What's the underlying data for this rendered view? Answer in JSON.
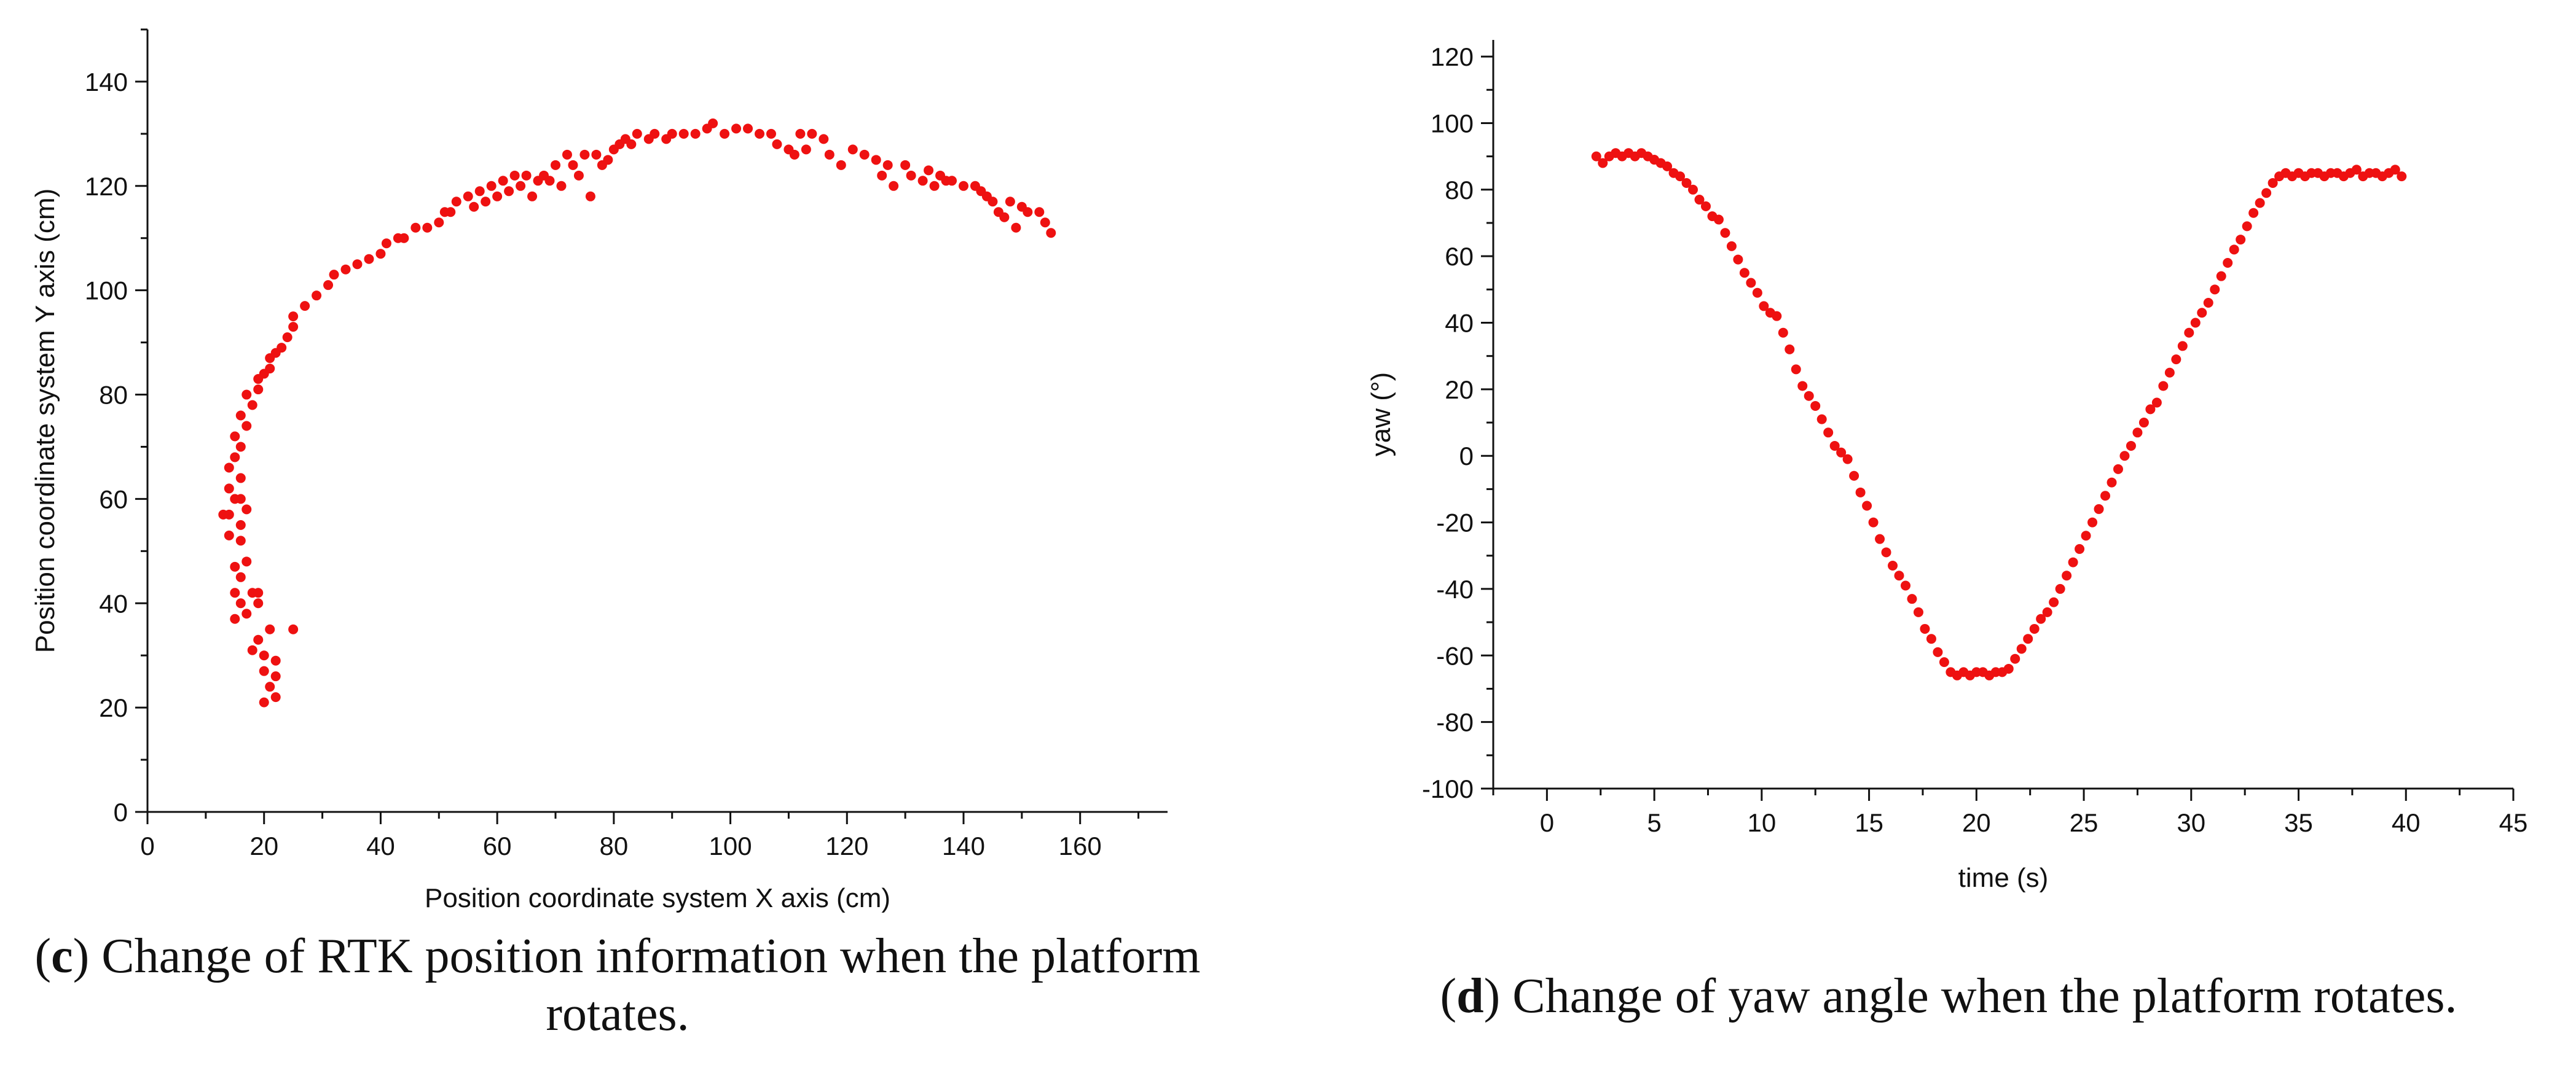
{
  "figures": {
    "c": {
      "caption_letter": "c",
      "caption_text": "Change of RTK position information when the platform rotates."
    },
    "d": {
      "caption_letter": "d",
      "caption_text": "Change of yaw angle when the platform rotates."
    }
  },
  "colors": {
    "points": "#ee1111",
    "axis": "#111111"
  },
  "chart_data": [
    {
      "id": "c",
      "type": "scatter",
      "title": "",
      "xlabel": "Position coordinate system X axis (cm)",
      "ylabel": "Position coordinate system Y axis (cm)",
      "xlim": [
        0,
        175
      ],
      "ylim": [
        0,
        150
      ],
      "xticks": [
        0,
        20,
        40,
        60,
        80,
        100,
        120,
        140,
        160
      ],
      "yticks": [
        0,
        20,
        40,
        60,
        80,
        100,
        120,
        140
      ],
      "series": [
        {
          "name": "RTK position",
          "points": [
            [
              20,
              21
            ],
            [
              22,
              22
            ],
            [
              21,
              24
            ],
            [
              20,
              27
            ],
            [
              22,
              26
            ],
            [
              22,
              29
            ],
            [
              20,
              30
            ],
            [
              18,
              31
            ],
            [
              19,
              33
            ],
            [
              25,
              35
            ],
            [
              21,
              35
            ],
            [
              15,
              37
            ],
            [
              17,
              38
            ],
            [
              19,
              40
            ],
            [
              16,
              40
            ],
            [
              18,
              42
            ],
            [
              15,
              42
            ],
            [
              19,
              42
            ],
            [
              16,
              45
            ],
            [
              15,
              47
            ],
            [
              17,
              48
            ],
            [
              16,
              52
            ],
            [
              14,
              53
            ],
            [
              16,
              55
            ],
            [
              14,
              57
            ],
            [
              13,
              57
            ],
            [
              17,
              58
            ],
            [
              15,
              60
            ],
            [
              16,
              60
            ],
            [
              14,
              62
            ],
            [
              16,
              64
            ],
            [
              14,
              66
            ],
            [
              15,
              68
            ],
            [
              16,
              70
            ],
            [
              15,
              72
            ],
            [
              17,
              74
            ],
            [
              16,
              76
            ],
            [
              18,
              78
            ],
            [
              17,
              80
            ],
            [
              19,
              81
            ],
            [
              19,
              83
            ],
            [
              20,
              84
            ],
            [
              21,
              85
            ],
            [
              21,
              87
            ],
            [
              22,
              88
            ],
            [
              23,
              89
            ],
            [
              24,
              91
            ],
            [
              25,
              93
            ],
            [
              25,
              95
            ],
            [
              27,
              97
            ],
            [
              29,
              99
            ],
            [
              31,
              101
            ],
            [
              32,
              103
            ],
            [
              34,
              104
            ],
            [
              36,
              105
            ],
            [
              38,
              106
            ],
            [
              40,
              107
            ],
            [
              41,
              109
            ],
            [
              43,
              110
            ],
            [
              44,
              110
            ],
            [
              46,
              112
            ],
            [
              48,
              112
            ],
            [
              50,
              113
            ],
            [
              51,
              115
            ],
            [
              52,
              115
            ],
            [
              53,
              117
            ],
            [
              55,
              118
            ],
            [
              56,
              116
            ],
            [
              57,
              119
            ],
            [
              58,
              117
            ],
            [
              59,
              120
            ],
            [
              60,
              118
            ],
            [
              61,
              121
            ],
            [
              62,
              119
            ],
            [
              63,
              122
            ],
            [
              64,
              120
            ],
            [
              65,
              122
            ],
            [
              66,
              118
            ],
            [
              67,
              121
            ],
            [
              68,
              122
            ],
            [
              69,
              121
            ],
            [
              70,
              124
            ],
            [
              71,
              120
            ],
            [
              72,
              126
            ],
            [
              73,
              124
            ],
            [
              74,
              122
            ],
            [
              75,
              126
            ],
            [
              76,
              118
            ],
            [
              77,
              126
            ],
            [
              78,
              124
            ],
            [
              79,
              125
            ],
            [
              80,
              127
            ],
            [
              81,
              128
            ],
            [
              82,
              129
            ],
            [
              83,
              128
            ],
            [
              84,
              130
            ],
            [
              86,
              129
            ],
            [
              87,
              130
            ],
            [
              89,
              129
            ],
            [
              90,
              130
            ],
            [
              92,
              130
            ],
            [
              94,
              130
            ],
            [
              96,
              131
            ],
            [
              97,
              132
            ],
            [
              99,
              130
            ],
            [
              101,
              131
            ],
            [
              103,
              131
            ],
            [
              105,
              130
            ],
            [
              107,
              130
            ],
            [
              108,
              128
            ],
            [
              110,
              127
            ],
            [
              111,
              126
            ],
            [
              112,
              130
            ],
            [
              113,
              127
            ],
            [
              114,
              130
            ],
            [
              116,
              129
            ],
            [
              117,
              126
            ],
            [
              119,
              124
            ],
            [
              121,
              127
            ],
            [
              123,
              126
            ],
            [
              125,
              125
            ],
            [
              126,
              122
            ],
            [
              127,
              124
            ],
            [
              128,
              120
            ],
            [
              130,
              124
            ],
            [
              131,
              122
            ],
            [
              133,
              121
            ],
            [
              134,
              123
            ],
            [
              135,
              120
            ],
            [
              136,
              122
            ],
            [
              137,
              121
            ],
            [
              138,
              121
            ],
            [
              140,
              120
            ],
            [
              142,
              120
            ],
            [
              143,
              119
            ],
            [
              144,
              118
            ],
            [
              145,
              117
            ],
            [
              146,
              115
            ],
            [
              147,
              114
            ],
            [
              148,
              117
            ],
            [
              149,
              112
            ],
            [
              150,
              116
            ],
            [
              151,
              115
            ],
            [
              153,
              115
            ],
            [
              154,
              113
            ],
            [
              155,
              111
            ]
          ]
        }
      ]
    },
    {
      "id": "d",
      "type": "scatter",
      "title": "",
      "xlabel": "time (s)",
      "ylabel": "yaw (°)",
      "xlim": [
        -2.5,
        45
      ],
      "ylim": [
        -100,
        125
      ],
      "xticks": [
        0,
        5,
        10,
        15,
        20,
        25,
        30,
        35,
        40,
        45
      ],
      "yticks": [
        -100,
        -80,
        -60,
        -40,
        -20,
        0,
        20,
        40,
        60,
        80,
        100,
        120
      ],
      "series": [
        {
          "name": "yaw",
          "points": [
            [
              2.3,
              90
            ],
            [
              2.6,
              88
            ],
            [
              2.9,
              90
            ],
            [
              3.2,
              91
            ],
            [
              3.5,
              90
            ],
            [
              3.8,
              91
            ],
            [
              4.1,
              90
            ],
            [
              4.4,
              91
            ],
            [
              4.7,
              90
            ],
            [
              5.0,
              89
            ],
            [
              5.3,
              88
            ],
            [
              5.6,
              87
            ],
            [
              5.9,
              85
            ],
            [
              6.2,
              84
            ],
            [
              6.5,
              82
            ],
            [
              6.8,
              80
            ],
            [
              7.1,
              77
            ],
            [
              7.4,
              75
            ],
            [
              7.7,
              72
            ],
            [
              8.0,
              71
            ],
            [
              8.3,
              67
            ],
            [
              8.6,
              63
            ],
            [
              8.9,
              59
            ],
            [
              9.2,
              55
            ],
            [
              9.5,
              52
            ],
            [
              9.8,
              49
            ],
            [
              10.1,
              45
            ],
            [
              10.4,
              43
            ],
            [
              10.7,
              42
            ],
            [
              11.0,
              37
            ],
            [
              11.3,
              32
            ],
            [
              11.6,
              26
            ],
            [
              11.9,
              21
            ],
            [
              12.2,
              18
            ],
            [
              12.5,
              15
            ],
            [
              12.8,
              11
            ],
            [
              13.1,
              7
            ],
            [
              13.4,
              3
            ],
            [
              13.7,
              1
            ],
            [
              14.0,
              -1
            ],
            [
              14.3,
              -6
            ],
            [
              14.6,
              -11
            ],
            [
              14.9,
              -15
            ],
            [
              15.2,
              -20
            ],
            [
              15.5,
              -25
            ],
            [
              15.8,
              -29
            ],
            [
              16.1,
              -33
            ],
            [
              16.4,
              -36
            ],
            [
              16.7,
              -39
            ],
            [
              17.0,
              -43
            ],
            [
              17.3,
              -47
            ],
            [
              17.6,
              -52
            ],
            [
              17.9,
              -55
            ],
            [
              18.2,
              -59
            ],
            [
              18.5,
              -62
            ],
            [
              18.8,
              -65
            ],
            [
              19.1,
              -66
            ],
            [
              19.4,
              -65
            ],
            [
              19.7,
              -66
            ],
            [
              20.0,
              -65
            ],
            [
              20.3,
              -65
            ],
            [
              20.6,
              -66
            ],
            [
              20.9,
              -65
            ],
            [
              21.2,
              -65
            ],
            [
              21.5,
              -64
            ],
            [
              21.8,
              -61
            ],
            [
              22.1,
              -58
            ],
            [
              22.4,
              -55
            ],
            [
              22.7,
              -52
            ],
            [
              23.0,
              -49
            ],
            [
              23.3,
              -47
            ],
            [
              23.6,
              -44
            ],
            [
              23.9,
              -40
            ],
            [
              24.2,
              -36
            ],
            [
              24.5,
              -32
            ],
            [
              24.8,
              -28
            ],
            [
              25.1,
              -24
            ],
            [
              25.4,
              -20
            ],
            [
              25.7,
              -16
            ],
            [
              26.0,
              -12
            ],
            [
              26.3,
              -8
            ],
            [
              26.6,
              -4
            ],
            [
              26.9,
              0
            ],
            [
              27.2,
              3
            ],
            [
              27.5,
              7
            ],
            [
              27.8,
              10
            ],
            [
              28.1,
              14
            ],
            [
              28.4,
              16
            ],
            [
              28.7,
              21
            ],
            [
              29.0,
              25
            ],
            [
              29.3,
              29
            ],
            [
              29.6,
              33
            ],
            [
              29.9,
              37
            ],
            [
              30.2,
              40
            ],
            [
              30.5,
              43
            ],
            [
              30.8,
              46
            ],
            [
              31.1,
              50
            ],
            [
              31.4,
              54
            ],
            [
              31.7,
              58
            ],
            [
              32.0,
              62
            ],
            [
              32.3,
              65
            ],
            [
              32.6,
              69
            ],
            [
              32.9,
              73
            ],
            [
              33.2,
              76
            ],
            [
              33.5,
              79
            ],
            [
              33.8,
              82
            ],
            [
              34.1,
              84
            ],
            [
              34.4,
              85
            ],
            [
              34.7,
              84
            ],
            [
              35.0,
              85
            ],
            [
              35.3,
              84
            ],
            [
              35.6,
              85
            ],
            [
              35.9,
              85
            ],
            [
              36.2,
              84
            ],
            [
              36.5,
              85
            ],
            [
              36.8,
              85
            ],
            [
              37.1,
              84
            ],
            [
              37.4,
              85
            ],
            [
              37.7,
              86
            ],
            [
              38.0,
              84
            ],
            [
              38.3,
              85
            ],
            [
              38.6,
              85
            ],
            [
              38.9,
              84
            ],
            [
              39.2,
              85
            ],
            [
              39.5,
              86
            ],
            [
              39.8,
              84
            ]
          ]
        }
      ]
    }
  ]
}
